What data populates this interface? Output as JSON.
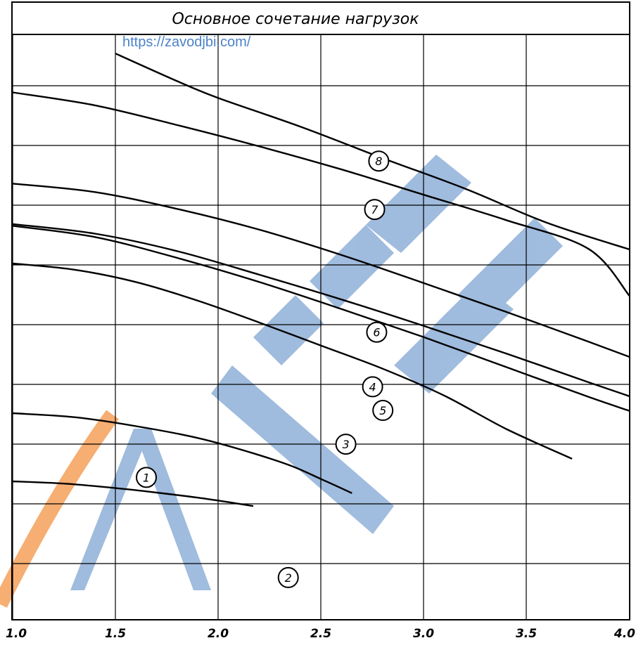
{
  "title": "Основное сочетание нагрузок",
  "watermark_url": "https://zavodjbi.com/",
  "chart_data": {
    "type": "line",
    "xlim": [
      1.0,
      4.0
    ],
    "x_ticks": [
      "1.0",
      "1.5",
      "2.0",
      "2.5",
      "3.0",
      "3.5",
      "4.0"
    ],
    "grid": true,
    "series": [
      {
        "name": "1",
        "x": [
          1.0,
          1.25,
          1.5,
          1.7,
          1.9,
          2.05,
          2.17
        ],
        "y": [
          0.46,
          0.42,
          0.34,
          0.26,
          0.17,
          0.09,
          0.02
        ]
      },
      {
        "name": "2",
        "x": [
          1.0,
          1.3,
          1.6,
          1.9,
          2.15,
          2.35,
          2.5,
          2.65
        ],
        "y": [
          1.67,
          1.6,
          1.44,
          1.23,
          0.98,
          0.74,
          0.5,
          0.25
        ]
      },
      {
        "name": "3",
        "x": [
          1.0,
          1.3,
          1.6,
          1.9,
          2.2,
          2.5,
          2.8,
          3.1,
          3.4,
          3.72
        ],
        "y": [
          4.33,
          4.22,
          4.0,
          3.67,
          3.28,
          2.87,
          2.46,
          1.98,
          1.39,
          0.86
        ]
      },
      {
        "name": "4",
        "x": [
          1.0,
          1.4,
          1.8,
          2.2,
          2.6,
          3.0,
          3.4,
          3.8,
          4.0
        ],
        "y": [
          5.03,
          4.86,
          4.55,
          4.13,
          3.69,
          3.22,
          2.73,
          2.22,
          1.97
        ]
      },
      {
        "name": "5",
        "x": [
          1.0,
          1.4,
          1.8,
          2.2,
          2.6,
          3.0,
          3.4,
          3.8,
          4.0
        ],
        "y": [
          5.0,
          4.8,
          4.43,
          4.0,
          3.52,
          3.02,
          2.49,
          1.96,
          1.71
        ]
      },
      {
        "name": "6",
        "x": [
          1.0,
          1.4,
          1.8,
          2.2,
          2.6,
          3.0,
          3.4,
          3.8,
          4.0
        ],
        "y": [
          5.75,
          5.6,
          5.3,
          4.93,
          4.48,
          3.98,
          3.47,
          2.94,
          2.67
        ]
      },
      {
        "name": "7",
        "x": [
          1.0,
          1.4,
          1.8,
          2.2,
          2.6,
          3.0,
          3.4,
          3.8,
          4.0
        ],
        "y": [
          7.37,
          7.14,
          6.79,
          6.41,
          6.0,
          5.55,
          5.1,
          4.59,
          3.75
        ]
      },
      {
        "name": "8",
        "x": [
          1.5,
          1.8,
          2.0,
          2.4,
          2.8,
          3.2,
          3.6,
          4.0
        ],
        "y": [
          8.06,
          7.57,
          7.27,
          6.76,
          6.2,
          5.66,
          5.05,
          4.58
        ]
      }
    ],
    "curve_labels": [
      {
        "text": "1",
        "x": 1.65,
        "y": 0.53
      },
      {
        "text": "2",
        "x": 2.34,
        "y": -1.25
      },
      {
        "text": "3",
        "x": 2.62,
        "y": 1.12
      },
      {
        "text": "4",
        "x": 2.75,
        "y": 2.14
      },
      {
        "text": "5",
        "x": 2.8,
        "y": 1.72
      },
      {
        "text": "6",
        "x": 2.77,
        "y": 3.11
      },
      {
        "text": "7",
        "x": 2.76,
        "y": 5.29
      },
      {
        "text": "8",
        "x": 2.78,
        "y": 6.15
      }
    ]
  }
}
